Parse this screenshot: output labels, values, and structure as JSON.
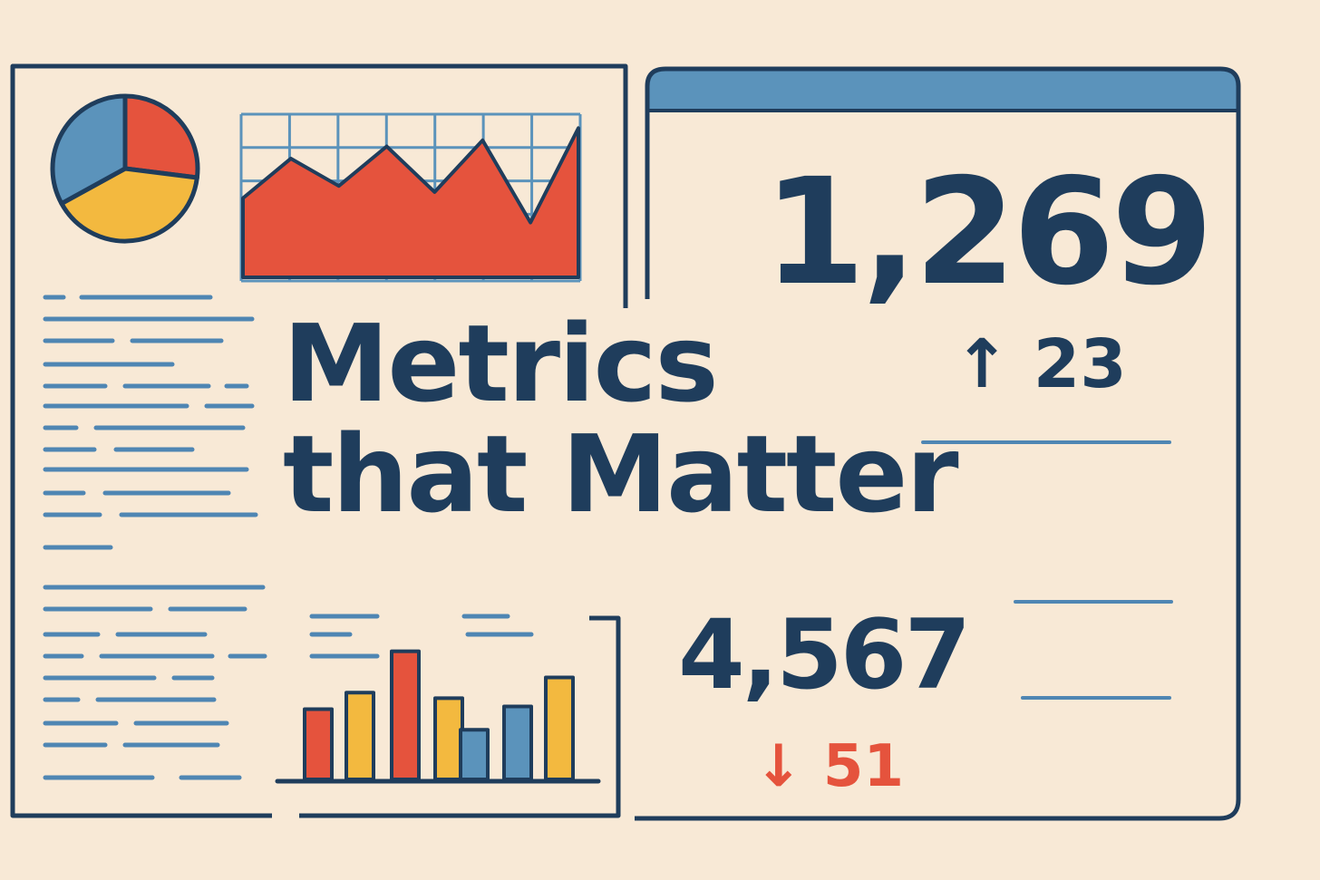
{
  "headline": {
    "line1": "Metrics",
    "line2": "that Matter"
  },
  "metrics": [
    {
      "value": "1,269",
      "change": "23",
      "direction": "up",
      "arrow": "↑",
      "color": "#1f3d5c"
    },
    {
      "value": "4,567",
      "change": "51",
      "direction": "down",
      "arrow": "↓",
      "color": "#e5533d"
    }
  ],
  "pie_chart": {
    "slices": [
      {
        "fraction": 0.27,
        "color": "#e5533d"
      },
      {
        "fraction": 0.4,
        "color": "#f3b93f"
      },
      {
        "fraction": 0.33,
        "color": "#5b93bb"
      }
    ]
  },
  "line_chart": {
    "values": [
      52,
      78,
      60,
      86,
      56,
      90,
      36,
      98
    ]
  },
  "bar_chart": {
    "values": [
      51,
      63,
      93,
      59,
      0,
      36,
      53,
      74
    ],
    "colors": [
      "#e5533d",
      "#f3b93f",
      "#e5533d",
      "#f3b93f",
      "",
      "#5b93bb",
      "#5b93bb",
      "#f3b93f"
    ]
  },
  "colors": {
    "background": "#f8e9d6",
    "navy": "#1f3d5c",
    "blue": "#5b93bb",
    "red": "#e5533d",
    "yellow": "#f3b93f"
  }
}
